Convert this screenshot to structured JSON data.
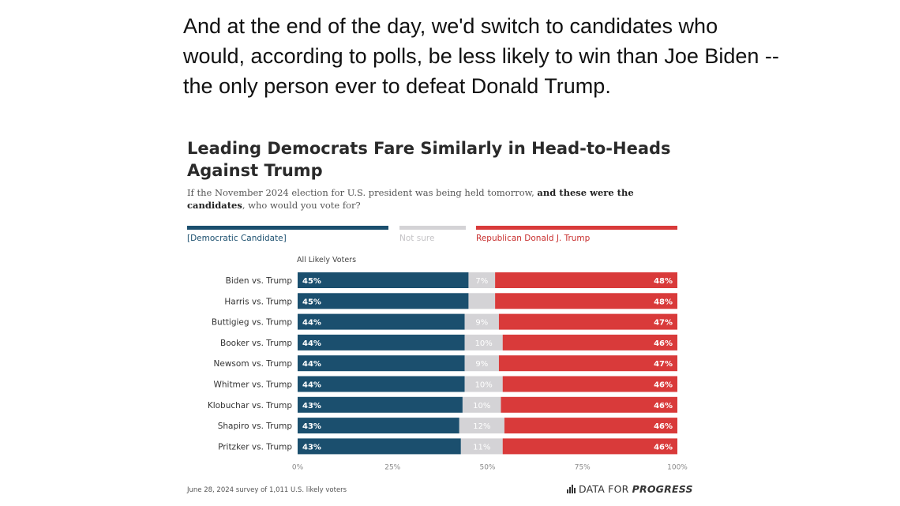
{
  "intro_text": "And at the end of the day, we'd switch to candidates who would, according to polls, be less likely to win than Joe Biden -- the only person ever to defeat Donald Trump.",
  "chart": {
    "title": "Leading Democrats Fare Similarly in Head-to-Heads Against Trump",
    "subtitle_part1": "If the November 2024 election for U.S. president was being held tomorrow, ",
    "subtitle_part2_bold": "and these were the candidates",
    "subtitle_part3": ", who would you vote for?",
    "legend": {
      "dem": "[Democratic Candidate]",
      "notsure": "Not sure",
      "rep": "Republican Donald J. Trump"
    },
    "group_label": "All Likely Voters",
    "footnote": "June 28, 2024 survey of 1,011 U.S. likely voters",
    "brand_part1": "DATA FOR ",
    "brand_part2": "PROGRESS"
  },
  "colors": {
    "dem": "#1b4f6e",
    "notsure": "#d4d3d6",
    "rep": "#d93a3a"
  },
  "chart_data": {
    "type": "bar",
    "orientation": "horizontal-stacked",
    "categories": [
      "Biden vs. Trump",
      "Harris vs. Trump",
      "Buttigieg vs. Trump",
      "Booker vs. Trump",
      "Newsom vs. Trump",
      "Whitmer vs. Trump",
      "Klobuchar vs. Trump",
      "Shapiro vs. Trump",
      "Pritzker vs. Trump"
    ],
    "series": [
      {
        "name": "[Democratic Candidate]",
        "values": [
          45,
          45,
          44,
          44,
          44,
          44,
          43,
          43,
          43
        ]
      },
      {
        "name": "Not sure",
        "values": [
          7,
          7,
          9,
          10,
          9,
          10,
          10,
          12,
          11
        ]
      },
      {
        "name": "Republican Donald J. Trump",
        "values": [
          48,
          48,
          47,
          46,
          47,
          46,
          46,
          46,
          46
        ]
      }
    ],
    "value_labels": {
      "dem": [
        "45%",
        "45%",
        "44%",
        "44%",
        "44%",
        "44%",
        "43%",
        "43%",
        "43%"
      ],
      "notsure": [
        "7%",
        "",
        "9%",
        "10%",
        "9%",
        "10%",
        "10%",
        "12%",
        "11%"
      ],
      "rep": [
        "48%",
        "48%",
        "47%",
        "46%",
        "47%",
        "46%",
        "46%",
        "46%",
        "46%"
      ]
    },
    "x_ticks": [
      "0%",
      "25%",
      "50%",
      "75%",
      "100%"
    ],
    "xlim": [
      0,
      100
    ]
  }
}
